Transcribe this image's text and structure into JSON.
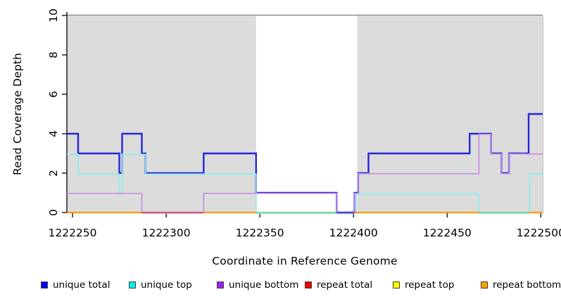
{
  "figure": {
    "y_axis_title": "Read Coverage Depth",
    "x_axis_title": "Coordinate in Reference Genome"
  },
  "chart_data": {
    "type": "line",
    "step": true,
    "title": "",
    "xlabel": "Coordinate in Reference Genome",
    "ylabel": "Read Coverage Depth",
    "x_range": [
      1222247,
      1222501
    ],
    "y_range": [
      0,
      10
    ],
    "x_ticks": [
      1222250,
      1222300,
      1222350,
      1222400,
      1222450,
      1222500
    ],
    "y_ticks": [
      0,
      2,
      4,
      6,
      8,
      10
    ],
    "grid": false,
    "shade_color": "#DCDCDC",
    "shaded_regions": [
      [
        1222247,
        1222348
      ],
      [
        1222402,
        1222501
      ]
    ],
    "x_end": 1222501,
    "series": [
      {
        "name": "repeat total",
        "color": "#EE0000",
        "width": 1.5,
        "offset": 0,
        "points": [
          [
            1222247,
            0
          ]
        ]
      },
      {
        "name": "repeat top",
        "color": "#FFFF00",
        "width": 1.5,
        "offset": 0,
        "points": [
          [
            1222247,
            0
          ]
        ]
      },
      {
        "name": "repeat bottom",
        "color": "#FF9A00",
        "width": 2.0,
        "offset": 0,
        "points": [
          [
            1222247,
            0
          ]
        ]
      },
      {
        "name": "unique total",
        "color": "#2626D8",
        "width": 2.4,
        "offset": 0,
        "points": [
          [
            1222247,
            4
          ],
          [
            1222253,
            3
          ],
          [
            1222275,
            2
          ],
          [
            1222276.5,
            4
          ],
          [
            1222287,
            3
          ],
          [
            1222289,
            2
          ],
          [
            1222320,
            3
          ],
          [
            1222348,
            1
          ],
          [
            1222391,
            0
          ],
          [
            1222400.5,
            1
          ],
          [
            1222402.5,
            2
          ],
          [
            1222408,
            3
          ],
          [
            1222462,
            4
          ],
          [
            1222473.5,
            3
          ],
          [
            1222479,
            2
          ],
          [
            1222483,
            3
          ],
          [
            1222493.5,
            5
          ]
        ]
      },
      {
        "name": "unique top",
        "color": "#8FECEC",
        "width": 1.7,
        "offset": 1.4,
        "points": [
          [
            1222247,
            3
          ],
          [
            1222253,
            2
          ],
          [
            1222275,
            1
          ],
          [
            1222276.5,
            3
          ],
          [
            1222289,
            2
          ],
          [
            1222348,
            0
          ],
          [
            1222401.5,
            1
          ],
          [
            1222467,
            0
          ],
          [
            1222494,
            2
          ]
        ]
      },
      {
        "name": "unique bottom",
        "color": "#C78BE2",
        "width": 1.7,
        "offset": 0.8,
        "points": [
          [
            1222247,
            1
          ],
          [
            1222287,
            0
          ],
          [
            1222320,
            1
          ],
          [
            1222391,
            0
          ],
          [
            1222400.5,
            1
          ],
          [
            1222402.5,
            2
          ],
          [
            1222467,
            4
          ],
          [
            1222473.5,
            3
          ],
          [
            1222479,
            2
          ],
          [
            1222483,
            3
          ]
        ]
      }
    ],
    "baseline_segments": [
      {
        "from": 1222247,
        "to": 1222287,
        "color": "#FF9A00"
      },
      {
        "from": 1222287,
        "to": 1222320,
        "color": "#D65A7C"
      },
      {
        "from": 1222320,
        "to": 1222348,
        "color": "#FF9A00"
      },
      {
        "from": 1222348,
        "to": 1222391,
        "color": "#8FD09A"
      },
      {
        "from": 1222391,
        "to": 1222400.5,
        "color": "#4C41DB"
      },
      {
        "from": 1222400.5,
        "to": 1222467,
        "color": "#FF9A00"
      },
      {
        "from": 1222467,
        "to": 1222494,
        "color": "#8FD09A"
      },
      {
        "from": 1222494,
        "to": 1222501,
        "color": "#FF9A00"
      }
    ]
  },
  "legend": {
    "items": [
      {
        "label": "unique total",
        "color": "#0000EE"
      },
      {
        "label": "unique top",
        "color": "#00EEEE"
      },
      {
        "label": "unique bottom",
        "color": "#A020F0"
      },
      {
        "label": "repeat total",
        "color": "#EE0000"
      },
      {
        "label": "repeat top",
        "color": "#FFFF00"
      },
      {
        "label": "repeat bottom",
        "color": "#FFA500"
      }
    ]
  }
}
